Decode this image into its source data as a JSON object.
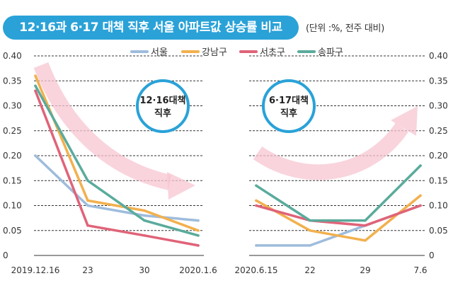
{
  "header": {
    "title": "12·16과 6·17 대책 직후 서울 아파트값 상승률 비교",
    "unit_note": "(단위 :%, 전주 대비)"
  },
  "annotations": {
    "left_badge": [
      "12·16대책",
      "직후"
    ],
    "right_badge": [
      "6·17대책",
      "직후"
    ]
  },
  "colors": {
    "서울": "#9ebcdc",
    "강남구": "#f2b04e",
    "서초구": "#e06378",
    "송파구": "#5aab9c",
    "title_bg": "#2aa2d8",
    "badge_border": "#2aa2d8",
    "arrow": "#f7c6d2"
  },
  "chart_data": [
    {
      "type": "line",
      "title": "12·16대책 직후",
      "categories": [
        "2019.12.16",
        "23",
        "30",
        "2020.1.6"
      ],
      "ylim": [
        0,
        0.4
      ],
      "yticks": [
        "0",
        "0.05",
        "0.10",
        "0.15",
        "0.20",
        "0.25",
        "0.30",
        "0.35",
        "0.40"
      ],
      "series": [
        {
          "name": "서울",
          "values": [
            0.2,
            0.1,
            0.08,
            0.07
          ]
        },
        {
          "name": "강남구",
          "values": [
            0.36,
            0.11,
            0.09,
            0.05
          ]
        },
        {
          "name": "서초구",
          "values": [
            0.33,
            0.06,
            0.04,
            0.02
          ]
        },
        {
          "name": "송파구",
          "values": [
            0.34,
            0.15,
            0.07,
            0.04
          ]
        }
      ]
    },
    {
      "type": "line",
      "title": "6·17대책 직후",
      "categories": [
        "2020.6.15",
        "22",
        "29",
        "7.6"
      ],
      "ylim": [
        0,
        0.4
      ],
      "yticks": [
        "0",
        "0.05",
        "0.10",
        "0.15",
        "0.20",
        "0.25",
        "0.30",
        "0.35",
        "0.40"
      ],
      "series": [
        {
          "name": "서울",
          "values": [
            0.02,
            0.02,
            0.06,
            0.1
          ]
        },
        {
          "name": "강남구",
          "values": [
            0.11,
            0.05,
            0.03,
            0.12
          ]
        },
        {
          "name": "서초구",
          "values": [
            0.1,
            0.07,
            0.06,
            0.1
          ]
        },
        {
          "name": "송파구",
          "values": [
            0.14,
            0.07,
            0.07,
            0.18
          ]
        }
      ]
    }
  ]
}
